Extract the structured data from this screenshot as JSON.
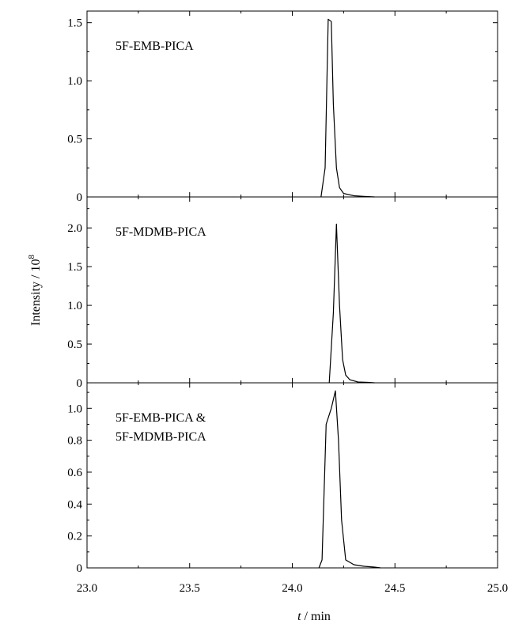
{
  "chart_data": {
    "type": "line",
    "xlabel_var": "t",
    "xlabel_unit": " / min",
    "ylabel_base": "Intensity / 10",
    "ylabel_exp": "8",
    "xlim": [
      23.0,
      25.0
    ],
    "xticks": [
      23.0,
      23.5,
      24.0,
      24.5,
      25.0
    ],
    "xtick_labels": [
      "23.0",
      "23.5",
      "24.0",
      "24.5",
      "25.0"
    ],
    "panels": [
      {
        "label_lines": [
          "5F-EMB-PICA"
        ],
        "ylim": [
          0,
          1.6
        ],
        "yticks": [
          0,
          0.5,
          1.0,
          1.5
        ],
        "ytick_labels": [
          "0",
          "0.5",
          "1.0",
          "1.5"
        ],
        "series": {
          "x": [
            24.14,
            24.16,
            24.175,
            24.19,
            24.2,
            24.215,
            24.23,
            24.25,
            24.3,
            24.35,
            24.4
          ],
          "y": [
            0,
            0.25,
            1.53,
            1.51,
            0.8,
            0.25,
            0.08,
            0.03,
            0.01,
            0.005,
            0
          ]
        }
      },
      {
        "label_lines": [
          "5F-MDMB-PICA"
        ],
        "ylim": [
          0,
          2.4
        ],
        "yticks": [
          0,
          0.5,
          1.0,
          1.5,
          2.0
        ],
        "ytick_labels": [
          "0",
          "0.5",
          "1.0",
          "1.5",
          "2.0"
        ],
        "series": {
          "x": [
            24.18,
            24.2,
            24.215,
            24.23,
            24.245,
            24.26,
            24.28,
            24.32,
            24.37,
            24.4
          ],
          "y": [
            0,
            0.9,
            2.05,
            1.0,
            0.3,
            0.1,
            0.04,
            0.01,
            0.005,
            0
          ]
        }
      },
      {
        "label_lines": [
          "5F-EMB-PICA &",
          "5F-MDMB-PICA"
        ],
        "ylim": [
          0,
          1.16
        ],
        "yticks": [
          0,
          0.2,
          0.4,
          0.6,
          0.8,
          1.0
        ],
        "ytick_labels": [
          "0",
          "0.2",
          "0.4",
          "0.6",
          "0.8",
          "1.0"
        ],
        "series": {
          "x": [
            24.13,
            24.145,
            24.165,
            24.19,
            24.21,
            24.225,
            24.24,
            24.26,
            24.3,
            24.35,
            24.4,
            24.43
          ],
          "y": [
            0,
            0.05,
            0.9,
            1.0,
            1.11,
            0.8,
            0.3,
            0.05,
            0.02,
            0.01,
            0.005,
            0
          ]
        }
      }
    ]
  }
}
